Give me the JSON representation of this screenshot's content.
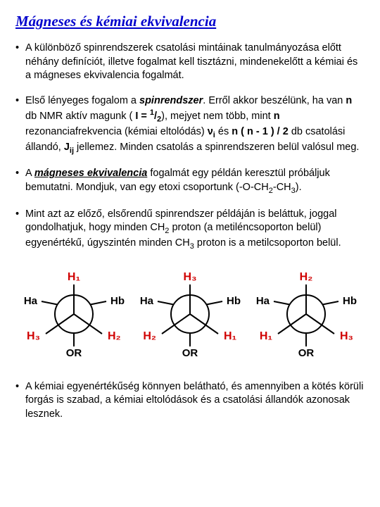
{
  "title": "Mágneses és kémiai ekvivalencia",
  "bullet_glyph": "•",
  "paragraphs": {
    "p1": "A különböző spinrendszerek csatolási mintáinak tanulmányo­zása előtt néhány definíciót, illetve fogalmat kell tisztázni, mindenekelőtt a kémiai és a mágneses ekvivalencia fogalmát.",
    "p5": "A kémiai egyenértékűség könnyen belátható, és amennyiben a kötés körüli forgás is szabad, a  kémiai eltolódások és a csatolási állandók azonosak lesznek."
  },
  "p2": {
    "t1": "Első lényeges fogalom a ",
    "spinrendszer": "spinrendszer",
    "t2": ". Erről akkor beszélünk, ha van ",
    "n1": "n",
    "t3": " db NMR aktív magunk ( ",
    "I": "I = ",
    "half_num": "1",
    "half_sl": "/",
    "half_den": "2",
    "t4": "), mejyet nem több, mint ",
    "n2": "n",
    "t5": " rezonanciafrekvencia (kémiai eltolódás)  ",
    "nu": "ν",
    "nu_i": "i",
    "t5b": " és ",
    "n3": "n ( n - 1 ) / 2",
    "t6": " db csatolási állandó, ",
    "J": "J",
    "Jij": "ij",
    "t7": " jellemez. Minden csatolás a spinrendszeren belül valósul meg."
  },
  "p3": {
    "t1": "A ",
    "mag": "mágneses ekvivalencia",
    "t2": " fogalmát egy példán keresztül próbáljuk bemutatni. Mondjuk, van egy etoxi csoportunk (-O-CH",
    "sub2": "2",
    "t3": "-CH",
    "sub3": "3",
    "t4": ")."
  },
  "p4": {
    "t1": "Mint azt az előző, elsőrendű spinrendszer példáján is be­láttuk, joggal gondolhatjuk, hogy minden CH",
    "sub2": "2",
    "t2": " proton (a metiléncsoporton belül) egyenértékű, úgyszintén minden CH",
    "sub3": "3",
    "t3": " proton is a metilcsoporton belül."
  },
  "newmans": {
    "OR": "OR",
    "colors": {
      "red": "#d00000",
      "black": "#000000",
      "stroke": "#000000",
      "bg": "#ffffff"
    },
    "projections": [
      {
        "front_top": "H₁",
        "front_bl": "H₃",
        "front_br": "H₂",
        "back_tl": "Ha",
        "back_tr": "Hb"
      },
      {
        "front_top": "H₃",
        "front_bl": "H₂",
        "front_br": "H₁",
        "back_tl": "Ha",
        "back_tr": "Hb"
      },
      {
        "front_top": "H₂",
        "front_bl": "H₁",
        "front_br": "H₃",
        "back_tl": "Ha",
        "back_tr": "Hb"
      }
    ]
  }
}
